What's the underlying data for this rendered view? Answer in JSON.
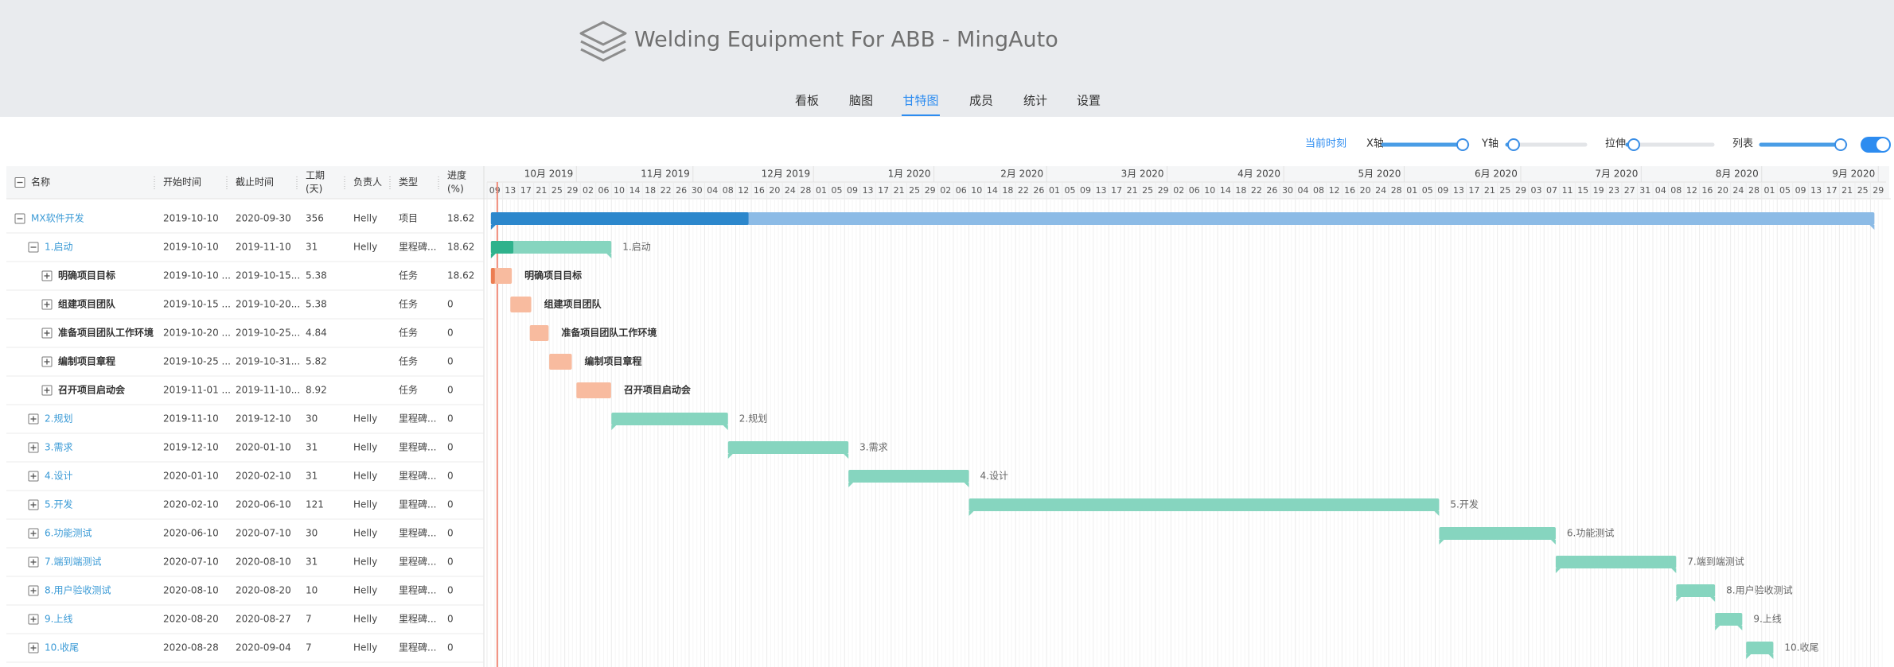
{
  "header": {
    "title": "Welding Equipment For ABB - MingAuto"
  },
  "nav": {
    "tabs": [
      "看板",
      "脑图",
      "甘特图",
      "成员",
      "统计",
      "设置"
    ],
    "active": 2
  },
  "toolbar": {
    "now": "当前时刻",
    "controls": [
      {
        "label": "X轴",
        "knob": "end"
      },
      {
        "label": "Y轴",
        "knob": "start"
      },
      {
        "label": "拉伸",
        "knob": "start"
      },
      {
        "label": "列表",
        "knob": "end"
      }
    ],
    "toggle": true
  },
  "columns": [
    "名称",
    "开始时间",
    "截止时间",
    [
      "工期",
      "(天)"
    ],
    "负责人",
    "类型",
    [
      "进度",
      "(%)"
    ]
  ],
  "timeline": {
    "months": [
      "10月 2019",
      "11月 2019",
      "12月 2019",
      "1月 2020",
      "2月 2020",
      "3月 2020",
      "4月 2020",
      "5月 2020",
      "6月 2020",
      "7月 2020",
      "8月 2020",
      "9月 2020"
    ],
    "days": [
      "09",
      "13",
      "17",
      "21",
      "25",
      "29",
      "02",
      "06",
      "10",
      "14",
      "18",
      "22",
      "26",
      "30",
      "04",
      "08",
      "12",
      "16",
      "20",
      "24",
      "28",
      "01",
      "05",
      "09",
      "13",
      "17",
      "21",
      "25",
      "29",
      "02",
      "06",
      "10",
      "14",
      "18",
      "22",
      "26",
      "01",
      "05",
      "09",
      "13",
      "17",
      "21",
      "25",
      "29",
      "02",
      "06",
      "10",
      "14",
      "18",
      "22",
      "26",
      "30",
      "04",
      "08",
      "12",
      "16",
      "20",
      "24",
      "28",
      "01",
      "05",
      "09",
      "13",
      "17",
      "21",
      "25",
      "29",
      "03",
      "07",
      "11",
      "15",
      "19",
      "23",
      "27",
      "31",
      "04",
      "08",
      "12",
      "16",
      "20",
      "24",
      "28",
      "01",
      "05",
      "09",
      "13",
      "17",
      "21",
      "25",
      "29"
    ]
  },
  "tree": {
    "name": "MX软件开发",
    "start": "2019-10-10",
    "end": "2020-09-30",
    "duration": 356,
    "owner": "Helly",
    "type": "项目",
    "progress": 18.62,
    "expanded": true,
    "children": [
      {
        "name": "1.启动",
        "start": "2019-10-10",
        "end": "2019-11-10",
        "duration": 31,
        "owner": "Helly",
        "type": "里程碑...",
        "progress": 18.62,
        "expanded": true,
        "children": [
          {
            "name": "明确项目目标",
            "start": "2019-10-10 ...",
            "end": "2019-10-15...",
            "duration": 5.38,
            "type": "任务",
            "progress": 18.62,
            "expanded": false
          },
          {
            "name": "组建项目团队",
            "start": "2019-10-15 ...",
            "end": "2019-10-20...",
            "duration": 5.38,
            "type": "任务",
            "progress": 0,
            "expanded": false
          },
          {
            "name": "准备项目团队工作环境",
            "start": "2019-10-20 ...",
            "end": "2019-10-25...",
            "duration": 4.84,
            "type": "任务",
            "progress": 0,
            "expanded": false
          },
          {
            "name": "编制项目章程",
            "start": "2019-10-25 ...",
            "end": "2019-10-31...",
            "duration": 5.82,
            "type": "任务",
            "progress": 0,
            "expanded": false
          },
          {
            "name": "召开项目启动会",
            "start": "2019-11-01 ...",
            "end": "2019-11-10...",
            "duration": 8.92,
            "type": "任务",
            "progress": 0,
            "expanded": false
          }
        ]
      },
      {
        "name": "2.规划",
        "start": "2019-11-10",
        "end": "2019-12-10",
        "duration": 30,
        "owner": "Helly",
        "type": "里程碑...",
        "progress": 0,
        "expanded": false
      },
      {
        "name": "3.需求",
        "start": "2019-12-10",
        "end": "2020-01-10",
        "duration": 31,
        "owner": "Helly",
        "type": "里程碑...",
        "progress": 0,
        "expanded": false
      },
      {
        "name": "4.设计",
        "start": "2020-01-10",
        "end": "2020-02-10",
        "duration": 31,
        "owner": "Helly",
        "type": "里程碑...",
        "progress": 0,
        "expanded": false
      },
      {
        "name": "5.开发",
        "start": "2020-02-10",
        "end": "2020-06-10",
        "duration": 121,
        "owner": "Helly",
        "type": "里程碑...",
        "progress": 0,
        "expanded": false
      },
      {
        "name": "6.功能测试",
        "start": "2020-06-10",
        "end": "2020-07-10",
        "duration": 30,
        "owner": "Helly",
        "type": "里程碑...",
        "progress": 0,
        "expanded": false
      },
      {
        "name": "7.端到端测试",
        "start": "2020-07-10",
        "end": "2020-08-10",
        "duration": 31,
        "owner": "Helly",
        "type": "里程碑...",
        "progress": 0,
        "expanded": false
      },
      {
        "name": "8.用户验收测试",
        "start": "2020-08-10",
        "end": "2020-08-20",
        "duration": 10,
        "owner": "Helly",
        "type": "里程碑...",
        "progress": 0,
        "expanded": false
      },
      {
        "name": "9.上线",
        "start": "2020-08-20",
        "end": "2020-08-27",
        "duration": 7,
        "owner": "Helly",
        "type": "里程碑...",
        "progress": 0,
        "expanded": false
      },
      {
        "name": "10.收尾",
        "start": "2020-08-28",
        "end": "2020-09-04",
        "duration": 7,
        "owner": "Helly",
        "type": "里程碑...",
        "progress": 0,
        "expanded": false
      }
    ]
  }
}
